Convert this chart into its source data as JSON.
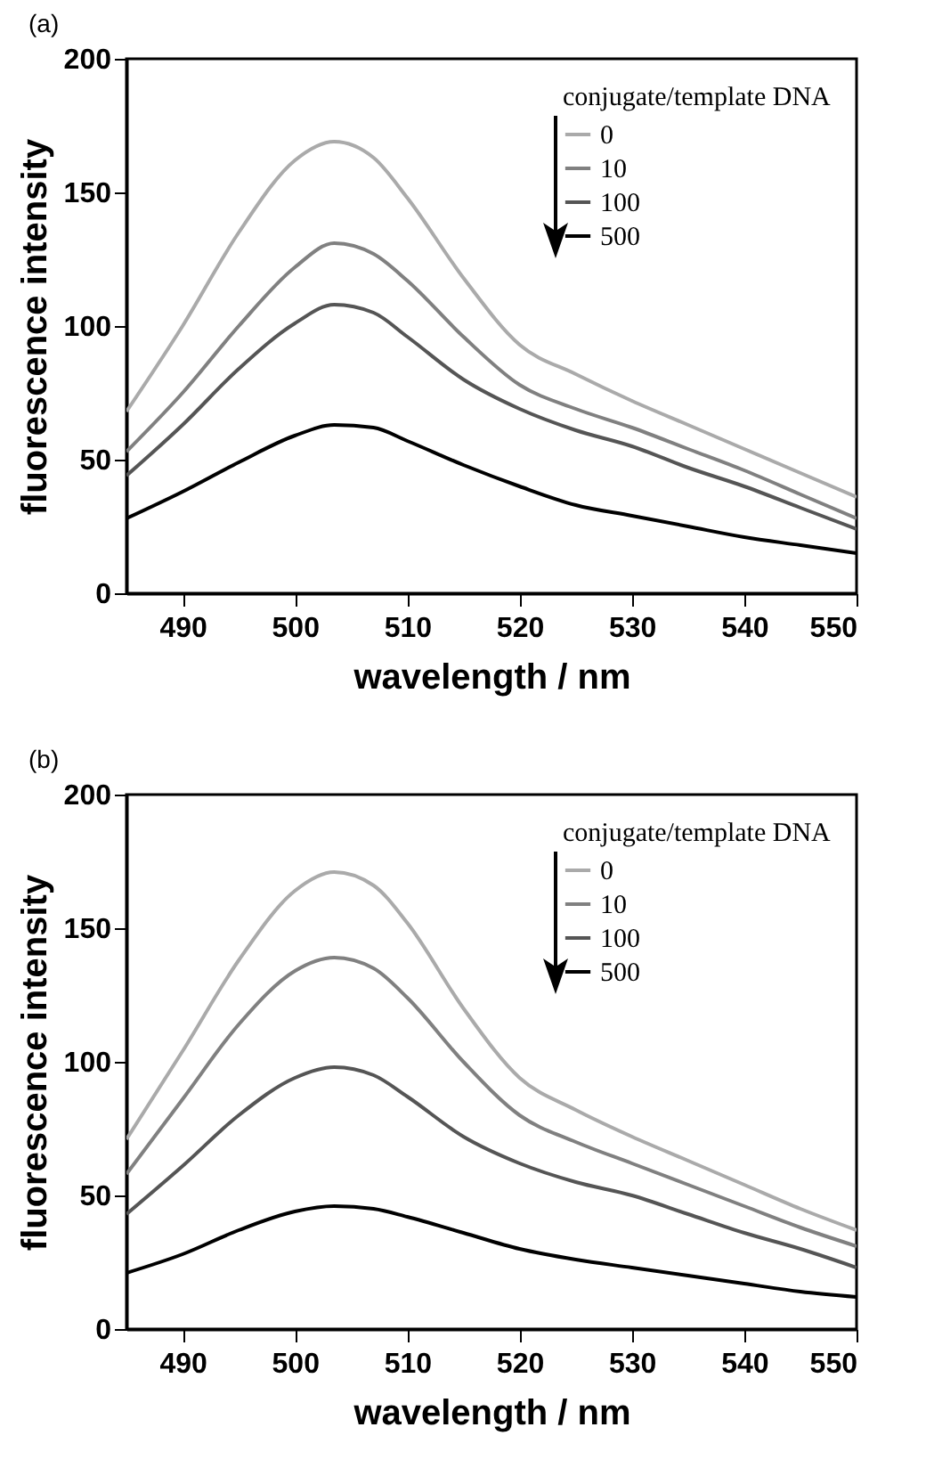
{
  "chart_data": [
    {
      "type": "line",
      "title": "(a)",
      "xlabel": "wavelength / nm",
      "ylabel": "fluorescence intensity",
      "legend_title": "conjugate/template DNA",
      "legend": "top right",
      "x": [
        485,
        490,
        495,
        500,
        503.5,
        507,
        510,
        515,
        520,
        525,
        530,
        535,
        540,
        545,
        550
      ],
      "series": [
        {
          "name": "0",
          "color": "#aaaaaa",
          "values": [
            68,
            100,
            135,
            162,
            169,
            163,
            148,
            118,
            93,
            82,
            72,
            63,
            54,
            45,
            36
          ]
        },
        {
          "name": "10",
          "color": "#808080",
          "values": [
            53,
            75,
            100,
            122,
            131,
            127,
            117,
            96,
            78,
            69,
            62,
            54,
            46,
            37,
            28
          ]
        },
        {
          "name": "100",
          "color": "#555555",
          "values": [
            44,
            63,
            84,
            101,
            108,
            105,
            96,
            80,
            69,
            61,
            55,
            47,
            40,
            32,
            24
          ]
        },
        {
          "name": "500",
          "color": "#000000",
          "values": [
            28,
            38,
            49,
            59,
            63,
            62,
            57,
            48,
            40,
            33,
            29,
            25,
            21,
            18,
            15
          ]
        }
      ],
      "xlim": [
        485,
        550
      ],
      "xticks": [
        490,
        500,
        510,
        520,
        530,
        540,
        550
      ],
      "ylim": [
        0,
        200
      ],
      "yticks": [
        0,
        50,
        100,
        150,
        200
      ]
    },
    {
      "type": "line",
      "title": "(b)",
      "xlabel": "wavelength / nm",
      "ylabel": "fluorescence intensity",
      "legend_title": "conjugate/template DNA",
      "legend": "top right",
      "x": [
        485,
        490,
        495,
        500,
        503.5,
        507,
        510,
        515,
        520,
        525,
        530,
        535,
        540,
        545,
        550
      ],
      "series": [
        {
          "name": "0",
          "color": "#aaaaaa",
          "values": [
            71,
            104,
            138,
            164,
            171,
            166,
            152,
            120,
            94,
            82,
            72,
            63,
            54,
            45,
            37
          ]
        },
        {
          "name": "10",
          "color": "#808080",
          "values": [
            58,
            86,
            114,
            134,
            139,
            135,
            124,
            100,
            80,
            70,
            62,
            54,
            46,
            38,
            31
          ]
        },
        {
          "name": "100",
          "color": "#555555",
          "values": [
            43,
            61,
            80,
            94,
            98,
            95,
            87,
            72,
            62,
            55,
            50,
            43,
            36,
            30,
            23
          ]
        },
        {
          "name": "500",
          "color": "#000000",
          "values": [
            21,
            28,
            37,
            44,
            46,
            45,
            42,
            36,
            30,
            26,
            23,
            20,
            17,
            14,
            12
          ]
        }
      ],
      "xlim": [
        485,
        550
      ],
      "xticks": [
        490,
        500,
        510,
        520,
        530,
        540,
        550
      ],
      "ylim": [
        0,
        200
      ],
      "yticks": [
        0,
        50,
        100,
        150,
        200
      ]
    }
  ]
}
